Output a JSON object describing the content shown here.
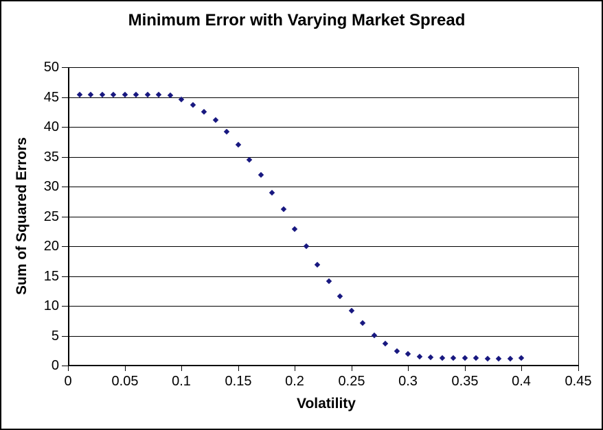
{
  "figure": {
    "title": "Minimum Error with Varying Market Spread"
  },
  "chart_data": {
    "type": "scatter",
    "title": "Minimum Error with Varying Market Spread",
    "xlabel": "Volatility",
    "ylabel": "Sum of Squared Errors",
    "xlim": [
      0,
      0.45
    ],
    "ylim": [
      0,
      50
    ],
    "x_tick_labels": [
      "0",
      "0.05",
      "0.1",
      "0.15",
      "0.2",
      "0.25",
      "0.3",
      "0.35",
      "0.4",
      "0.45"
    ],
    "y_tick_labels": [
      "0",
      "5",
      "10",
      "15",
      "20",
      "25",
      "30",
      "35",
      "40",
      "45",
      "50"
    ],
    "grid": "horizontal-only",
    "legend_position": "none",
    "marker_shape": "diamond",
    "marker_color": "#181880",
    "axis_color": "#000000",
    "x": [
      0.01,
      0.02,
      0.03,
      0.04,
      0.05,
      0.06,
      0.07,
      0.08,
      0.09,
      0.1,
      0.11,
      0.12,
      0.13,
      0.14,
      0.15,
      0.16,
      0.17,
      0.18,
      0.19,
      0.2,
      0.21,
      0.22,
      0.23,
      0.24,
      0.25,
      0.26,
      0.27,
      0.28,
      0.29,
      0.3,
      0.31,
      0.32,
      0.33,
      0.34,
      0.35,
      0.36,
      0.37,
      0.38,
      0.39,
      0.4
    ],
    "y": [
      45.4,
      45.4,
      45.4,
      45.4,
      45.4,
      45.4,
      45.4,
      45.4,
      45.3,
      44.6,
      43.7,
      42.5,
      41.1,
      39.2,
      37.0,
      34.5,
      31.9,
      29.0,
      26.2,
      22.9,
      20.0,
      16.9,
      14.1,
      11.6,
      9.2,
      7.1,
      5.1,
      3.7,
      2.4,
      1.9,
      1.5,
      1.4,
      1.3,
      1.3,
      1.3,
      1.3,
      1.2,
      1.2,
      1.2,
      1.3
    ]
  }
}
